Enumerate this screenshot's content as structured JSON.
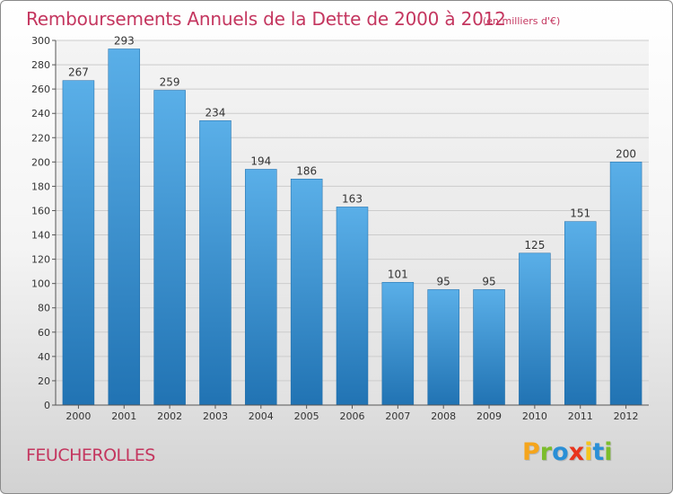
{
  "title": "Remboursements Annuels de la Dette de 2000 à 2012",
  "unit_note": "(en milliers d'€)",
  "commune": "FEUCHEROLLES",
  "logo": {
    "text": "Proxiti",
    "letters": [
      {
        "char": "P",
        "color": "#f5a51c"
      },
      {
        "char": "r",
        "color": "#7cbd2c"
      },
      {
        "char": "o",
        "color": "#2a8fd6"
      },
      {
        "char": "x",
        "color": "#e8341c"
      },
      {
        "char": "i",
        "color": "#f5c51c"
      },
      {
        "char": "t",
        "color": "#2a8fd6"
      },
      {
        "char": "i",
        "color": "#7cbd2c"
      }
    ]
  },
  "colors": {
    "bar_top": "#5aafe8",
    "bar_bottom": "#2173b3",
    "title": "#c4365f",
    "grid": "#cccccc"
  },
  "chart_data": {
    "type": "bar",
    "categories": [
      "2000",
      "2001",
      "2002",
      "2003",
      "2004",
      "2005",
      "2006",
      "2007",
      "2008",
      "2009",
      "2010",
      "2011",
      "2012"
    ],
    "values": [
      267,
      293,
      259,
      234,
      194,
      186,
      163,
      101,
      95,
      95,
      125,
      151,
      200
    ],
    "ylim": [
      0,
      300
    ],
    "yticks": [
      0,
      20,
      40,
      60,
      80,
      100,
      120,
      140,
      160,
      180,
      200,
      220,
      240,
      260,
      280,
      300
    ],
    "grid": true,
    "data_labels": true
  }
}
